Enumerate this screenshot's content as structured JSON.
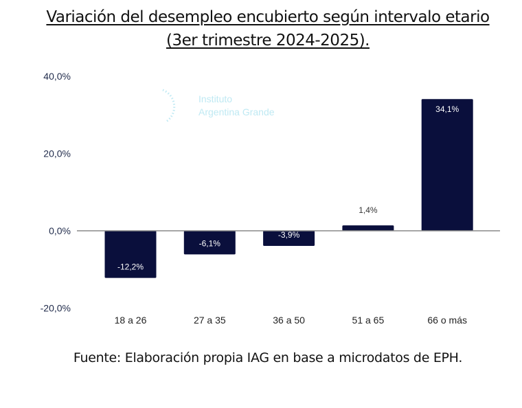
{
  "title_line1": "Variación del desempleo encubierto según intervalo etario",
  "title_line2": "(3er trimestre 2024-2025).",
  "footer": "Fuente: Elaboración propia IAG en base a microdatos de EPH.",
  "watermark": {
    "line1": "Instituto",
    "line2": "Argentina Grande"
  },
  "colors": {
    "bar": "#0a0f3c",
    "axis_text": "#1f2a4a",
    "zero_line": "#888888",
    "watermark": "#bfe9f3"
  },
  "chart_data": {
    "type": "bar",
    "categories": [
      "18 a 26",
      "27 a 35",
      "36 a 50",
      "51 a 65",
      "66 o más"
    ],
    "values": [
      -12.2,
      -6.1,
      -3.9,
      1.4,
      34.1
    ],
    "data_labels": [
      "-12,2%",
      "-6,1%",
      "-3,9%",
      "1,4%",
      "34,1%"
    ],
    "yticks": [
      40,
      20,
      0,
      -20
    ],
    "ytick_labels": [
      "40,0%",
      "20,0%",
      "0,0%",
      "-20,0%"
    ],
    "ylim": [
      -20,
      40
    ],
    "grid": false,
    "xlabel": "",
    "ylabel": ""
  }
}
